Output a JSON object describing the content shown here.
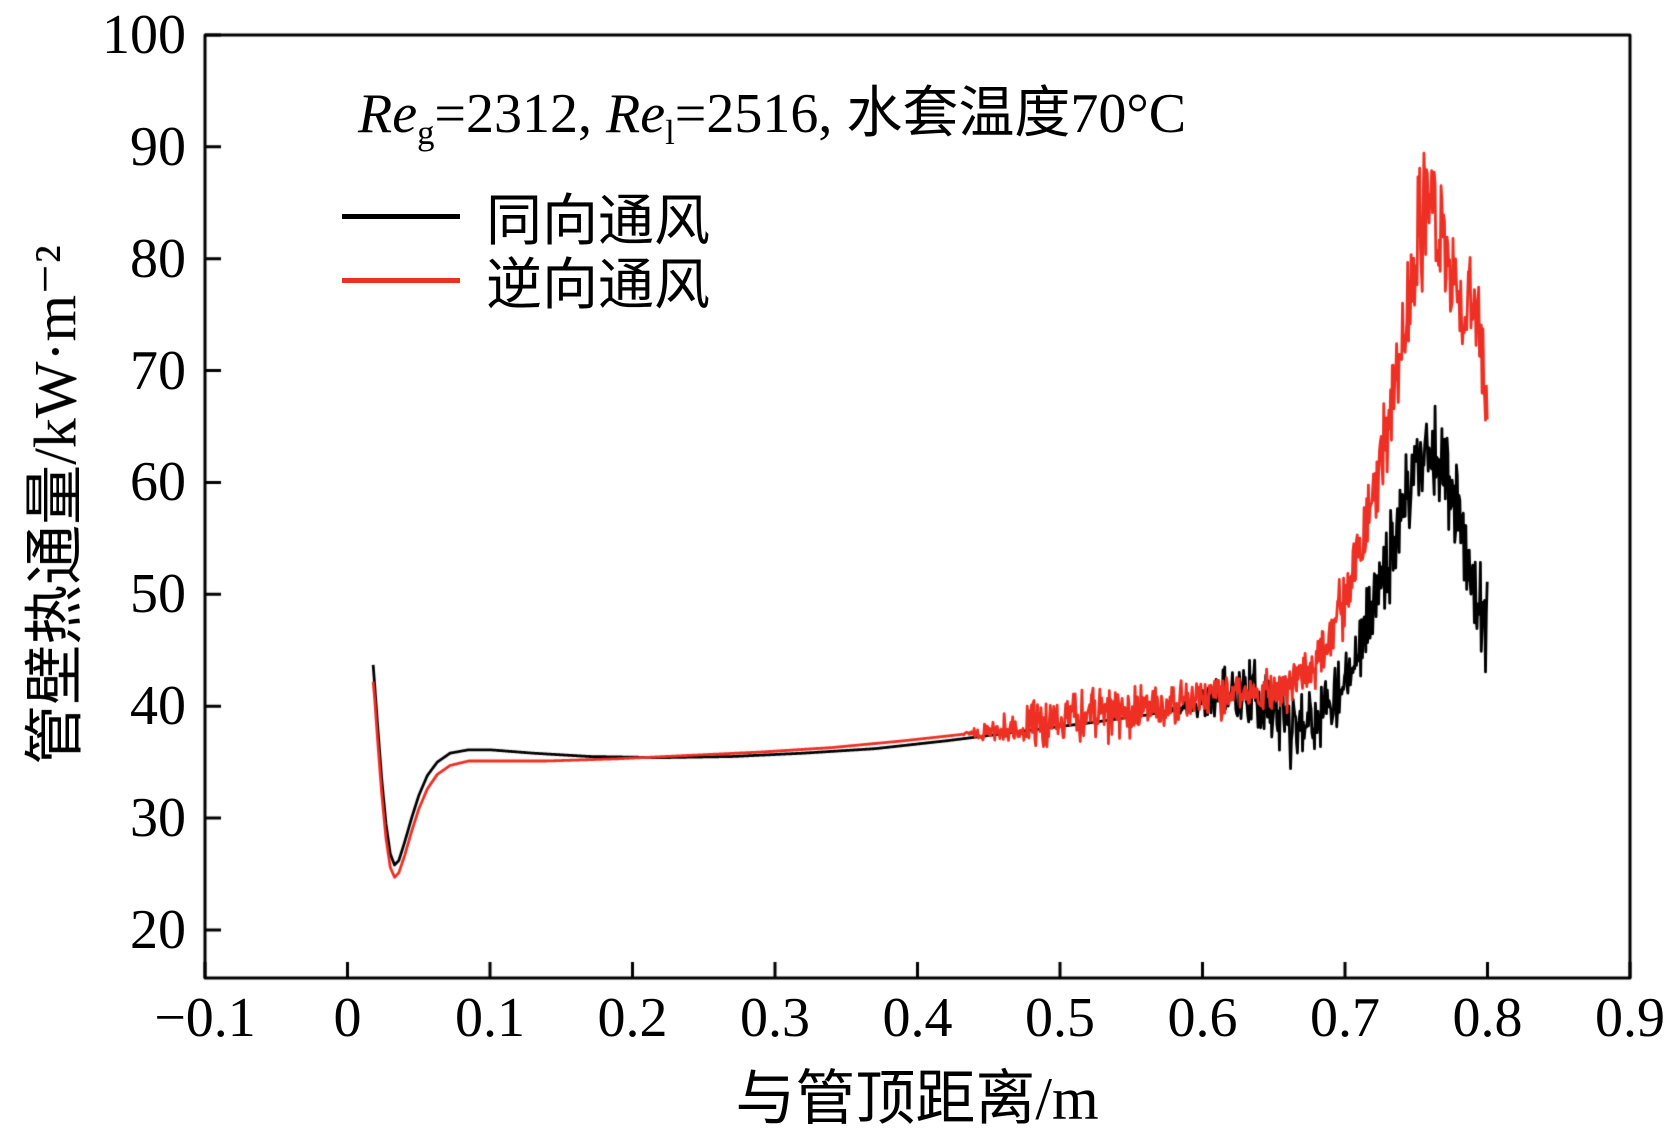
{
  "chart_data": {
    "type": "line",
    "annotation_parts": [
      {
        "text": "Re",
        "style": "italic"
      },
      {
        "text": "g",
        "style": "sub"
      },
      {
        "text": "=2312, ",
        "style": "normal"
      },
      {
        "text": "Re",
        "style": "italic"
      },
      {
        "text": "l",
        "style": "sub"
      },
      {
        "text": "=2516, 水套温度70°C",
        "style": "normal"
      }
    ],
    "xlabel": "与管顶距离/m",
    "ylabel": "管壁热通量/kW·m⁻²",
    "xlim": [
      -0.1,
      0.9
    ],
    "ylim": [
      15.7,
      100
    ],
    "grid": false,
    "legend_position": "upper-left-inside",
    "xticks": {
      "values": [
        -0.1,
        0,
        0.1,
        0.2,
        0.3,
        0.4,
        0.5,
        0.6,
        0.7,
        0.8,
        0.9
      ],
      "labels": [
        "−0.1",
        "0",
        "0.1",
        "0.2",
        "0.3",
        "0.4",
        "0.5",
        "0.6",
        "0.7",
        "0.8",
        "0.9"
      ]
    },
    "yticks": {
      "values": [
        20,
        30,
        40,
        50,
        60,
        70,
        80,
        90,
        100
      ],
      "labels": [
        "20",
        "30",
        "40",
        "50",
        "60",
        "70",
        "80",
        "90",
        "100"
      ]
    },
    "series": [
      {
        "name": "同向通风",
        "color": "#000000",
        "x_range": [
          0.018,
          0.8
        ],
        "noise_seed": 11,
        "base_points": [
          [
            0.018,
            43.7
          ],
          [
            0.019,
            42.0
          ],
          [
            0.021,
            38.5
          ],
          [
            0.024,
            33.5
          ],
          [
            0.027,
            29.5
          ],
          [
            0.03,
            26.8
          ],
          [
            0.033,
            25.8
          ],
          [
            0.036,
            26.2
          ],
          [
            0.04,
            27.8
          ],
          [
            0.045,
            30.0
          ],
          [
            0.05,
            32.0
          ],
          [
            0.056,
            33.8
          ],
          [
            0.063,
            35.0
          ],
          [
            0.072,
            35.8
          ],
          [
            0.085,
            36.1
          ],
          [
            0.1,
            36.1
          ],
          [
            0.13,
            35.8
          ],
          [
            0.17,
            35.5
          ],
          [
            0.22,
            35.4
          ],
          [
            0.27,
            35.5
          ],
          [
            0.32,
            35.8
          ],
          [
            0.37,
            36.2
          ],
          [
            0.42,
            36.9
          ],
          [
            0.47,
            37.7
          ],
          [
            0.52,
            38.5
          ],
          [
            0.56,
            39.2
          ],
          [
            0.6,
            40.2
          ],
          [
            0.62,
            41.3
          ],
          [
            0.64,
            41.0
          ],
          [
            0.655,
            39.2
          ],
          [
            0.668,
            38.6
          ],
          [
            0.68,
            39.5
          ],
          [
            0.695,
            41.5
          ],
          [
            0.71,
            45.5
          ],
          [
            0.725,
            51.0
          ],
          [
            0.74,
            58.0
          ],
          [
            0.752,
            62.5
          ],
          [
            0.762,
            63.0
          ],
          [
            0.772,
            60.5
          ],
          [
            0.782,
            56.0
          ],
          [
            0.792,
            49.0
          ],
          [
            0.8,
            45.0
          ]
        ],
        "noise_envelope": [
          [
            0.0,
            0
          ],
          [
            0.57,
            0
          ],
          [
            0.595,
            1.0
          ],
          [
            0.61,
            2.8
          ],
          [
            0.63,
            3.4
          ],
          [
            0.65,
            4.0
          ],
          [
            0.665,
            5.0
          ],
          [
            0.68,
            4.0
          ],
          [
            0.7,
            3.4
          ],
          [
            0.72,
            4.5
          ],
          [
            0.74,
            5.5
          ],
          [
            0.755,
            6.0
          ],
          [
            0.765,
            5.5
          ],
          [
            0.775,
            5.0
          ],
          [
            0.785,
            4.5
          ],
          [
            0.793,
            4.0
          ],
          [
            0.8,
            10.5
          ]
        ]
      },
      {
        "name": "逆向通风",
        "color": "#ee2f23",
        "x_range": [
          0.018,
          0.8
        ],
        "noise_seed": 97,
        "base_points": [
          [
            0.018,
            42.2
          ],
          [
            0.019,
            40.8
          ],
          [
            0.021,
            37.2
          ],
          [
            0.024,
            32.2
          ],
          [
            0.027,
            28.2
          ],
          [
            0.03,
            25.6
          ],
          [
            0.033,
            24.7
          ],
          [
            0.036,
            25.1
          ],
          [
            0.04,
            26.6
          ],
          [
            0.045,
            28.8
          ],
          [
            0.05,
            30.8
          ],
          [
            0.056,
            32.6
          ],
          [
            0.063,
            33.9
          ],
          [
            0.072,
            34.7
          ],
          [
            0.085,
            35.1
          ],
          [
            0.1,
            35.1
          ],
          [
            0.14,
            35.1
          ],
          [
            0.19,
            35.3
          ],
          [
            0.24,
            35.6
          ],
          [
            0.29,
            35.9
          ],
          [
            0.34,
            36.3
          ],
          [
            0.39,
            36.9
          ],
          [
            0.44,
            37.6
          ],
          [
            0.48,
            38.3
          ],
          [
            0.52,
            39.1
          ],
          [
            0.56,
            39.9
          ],
          [
            0.6,
            40.7
          ],
          [
            0.63,
            41.2
          ],
          [
            0.655,
            41.5
          ],
          [
            0.67,
            42.5
          ],
          [
            0.685,
            45.0
          ],
          [
            0.7,
            49.5
          ],
          [
            0.715,
            56.0
          ],
          [
            0.73,
            65.0
          ],
          [
            0.742,
            74.0
          ],
          [
            0.752,
            82.0
          ],
          [
            0.76,
            85.0
          ],
          [
            0.768,
            81.5
          ],
          [
            0.776,
            78.0
          ],
          [
            0.784,
            76.0
          ],
          [
            0.792,
            75.5
          ],
          [
            0.8,
            66.0
          ]
        ],
        "noise_envelope": [
          [
            0.0,
            0
          ],
          [
            0.43,
            0
          ],
          [
            0.45,
            1.2
          ],
          [
            0.48,
            2.2
          ],
          [
            0.52,
            3.0
          ],
          [
            0.56,
            2.8
          ],
          [
            0.6,
            2.4
          ],
          [
            0.64,
            2.2
          ],
          [
            0.67,
            2.6
          ],
          [
            0.69,
            3.2
          ],
          [
            0.71,
            4.0
          ],
          [
            0.73,
            5.0
          ],
          [
            0.745,
            6.0
          ],
          [
            0.757,
            7.5
          ],
          [
            0.768,
            6.0
          ],
          [
            0.78,
            5.0
          ],
          [
            0.79,
            6.5
          ],
          [
            0.8,
            4.5
          ]
        ]
      }
    ]
  }
}
